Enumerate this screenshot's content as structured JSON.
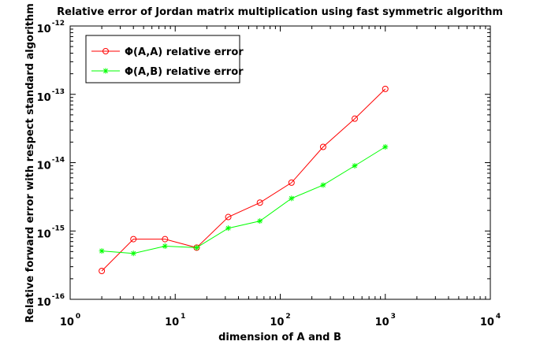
{
  "chart_data": {
    "type": "line",
    "title": "Relative error of Jordan matrix multiplication using fast symmetric algorithm",
    "xlabel": "dimension of A and B",
    "ylabel": "Relative forward error with respect standard algorithm",
    "xscale": "log",
    "yscale": "log",
    "xlim": [
      1,
      10000
    ],
    "ylim": [
      1e-16,
      1e-12
    ],
    "x_ticks": [
      {
        "base": "10",
        "exp": "0"
      },
      {
        "base": "10",
        "exp": "1"
      },
      {
        "base": "10",
        "exp": "2"
      },
      {
        "base": "10",
        "exp": "3"
      },
      {
        "base": "10",
        "exp": "4"
      }
    ],
    "y_ticks": [
      {
        "base": "10",
        "exp": "-16"
      },
      {
        "base": "10",
        "exp": "-15"
      },
      {
        "base": "10",
        "exp": "-14"
      },
      {
        "base": "10",
        "exp": "-13"
      },
      {
        "base": "10",
        "exp": "-12"
      }
    ],
    "grid": false,
    "legend_position": "top-left",
    "x": [
      2,
      4,
      8,
      16,
      32,
      64,
      128,
      256,
      512,
      1000
    ],
    "series": [
      {
        "name": "Φ(A,A) relative error",
        "color": "#ff0000",
        "marker": "circle",
        "values": [
          2.6e-16,
          7.6e-16,
          7.6e-16,
          5.7e-16,
          1.6e-15,
          2.6e-15,
          5.1e-15,
          1.7e-14,
          4.4e-14,
          1.2e-13
        ]
      },
      {
        "name": "Φ(A,B) relative error",
        "color": "#00ff00",
        "marker": "star",
        "values": [
          5.1e-16,
          4.7e-16,
          6e-16,
          5.7e-16,
          1.1e-15,
          1.4e-15,
          3e-15,
          4.7e-15,
          9e-15,
          1.7e-14
        ]
      }
    ]
  }
}
